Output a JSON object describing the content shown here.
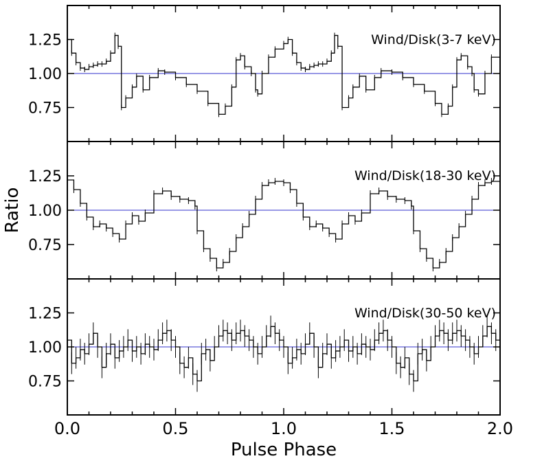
{
  "figure": {
    "ylabel": "Ratio",
    "xlabel": "Pulse Phase"
  },
  "chart_data": [
    {
      "type": "line",
      "panel_label": "Wind/Disk(3-7 keV)",
      "xlim": [
        0,
        2
      ],
      "ylim": [
        0.5,
        1.5
      ],
      "yticks": [
        "0.75",
        "1.00",
        "1.25"
      ],
      "xticks": [
        "0.0",
        "0.5",
        "1.0",
        "1.5",
        "2.0"
      ],
      "reference_line": 1.0,
      "x": [
        0,
        0.02,
        0.04,
        0.06,
        0.08,
        0.1,
        0.12,
        0.14,
        0.16,
        0.18,
        0.2,
        0.22,
        0.235,
        0.25,
        0.27,
        0.3,
        0.32,
        0.35,
        0.38,
        0.42,
        0.45,
        0.5,
        0.55,
        0.6,
        0.65,
        0.7,
        0.73,
        0.76,
        0.78,
        0.8,
        0.82,
        0.85,
        0.87,
        0.88,
        0.9,
        0.93,
        0.96,
        1.0,
        1.02,
        1.04,
        1.06,
        1.08,
        1.1,
        1.12,
        1.14,
        1.16,
        1.18,
        1.2,
        1.22,
        1.235,
        1.25,
        1.27,
        1.3,
        1.32,
        1.35,
        1.38,
        1.42,
        1.45,
        1.5,
        1.55,
        1.6,
        1.65,
        1.7,
        1.73,
        1.76,
        1.78,
        1.8,
        1.82,
        1.85,
        1.87,
        1.88,
        1.9,
        1.93,
        1.96,
        2.0
      ],
      "y": [
        1.25,
        1.15,
        1.08,
        1.04,
        1.03,
        1.05,
        1.06,
        1.07,
        1.07,
        1.09,
        1.15,
        1.28,
        1.2,
        0.75,
        0.82,
        0.9,
        0.98,
        0.88,
        0.97,
        1.02,
        1.01,
        0.97,
        0.92,
        0.87,
        0.78,
        0.7,
        0.76,
        0.9,
        1.1,
        1.13,
        1.05,
        1.0,
        0.88,
        0.85,
        1.0,
        1.12,
        1.18,
        1.22,
        1.25,
        1.15,
        1.08,
        1.04,
        1.03,
        1.05,
        1.06,
        1.07,
        1.07,
        1.09,
        1.15,
        1.28,
        1.2,
        0.75,
        0.82,
        0.9,
        0.98,
        0.88,
        0.97,
        1.02,
        1.01,
        0.97,
        0.92,
        0.87,
        0.78,
        0.7,
        0.76,
        0.9,
        1.1,
        1.13,
        1.05,
        1.0,
        0.88,
        0.85,
        1.0,
        1.12,
        1.2
      ],
      "error": 0.02
    },
    {
      "type": "line",
      "panel_label": "Wind/Disk(18-30 keV)",
      "xlim": [
        0,
        2
      ],
      "ylim": [
        0.5,
        1.5
      ],
      "yticks": [
        "0.75",
        "1.00",
        "1.25"
      ],
      "xticks": [
        "0.0",
        "0.5",
        "1.0",
        "1.5",
        "2.0"
      ],
      "reference_line": 1.0,
      "x": [
        0,
        0.03,
        0.06,
        0.09,
        0.12,
        0.15,
        0.18,
        0.21,
        0.24,
        0.27,
        0.3,
        0.33,
        0.36,
        0.4,
        0.44,
        0.48,
        0.52,
        0.56,
        0.59,
        0.6,
        0.63,
        0.66,
        0.69,
        0.72,
        0.75,
        0.78,
        0.81,
        0.84,
        0.87,
        0.9,
        0.93,
        0.96,
        1.0,
        1.03,
        1.06,
        1.09,
        1.12,
        1.15,
        1.18,
        1.21,
        1.24,
        1.27,
        1.3,
        1.33,
        1.36,
        1.4,
        1.44,
        1.48,
        1.52,
        1.56,
        1.59,
        1.6,
        1.63,
        1.66,
        1.69,
        1.72,
        1.75,
        1.78,
        1.81,
        1.84,
        1.87,
        1.9,
        1.93,
        1.96,
        2.0
      ],
      "y": [
        1.22,
        1.15,
        1.05,
        0.95,
        0.88,
        0.9,
        0.87,
        0.83,
        0.79,
        0.9,
        0.96,
        0.92,
        0.98,
        1.12,
        1.14,
        1.1,
        1.08,
        1.07,
        1.03,
        0.85,
        0.72,
        0.65,
        0.58,
        0.62,
        0.7,
        0.8,
        0.88,
        0.97,
        1.08,
        1.18,
        1.2,
        1.21,
        1.2,
        1.15,
        1.05,
        0.95,
        0.88,
        0.9,
        0.87,
        0.83,
        0.79,
        0.9,
        0.96,
        0.92,
        0.98,
        1.12,
        1.14,
        1.1,
        1.08,
        1.07,
        1.03,
        0.85,
        0.72,
        0.65,
        0.58,
        0.62,
        0.7,
        0.8,
        0.88,
        0.97,
        1.08,
        1.18,
        1.2,
        1.21,
        1.19
      ],
      "error": 0.025
    },
    {
      "type": "line",
      "panel_label": "Wind/Disk(30-50 keV)",
      "xlim": [
        0,
        2
      ],
      "ylim": [
        0.5,
        1.5
      ],
      "yticks": [
        "0.75",
        "1.00",
        "1.25"
      ],
      "xticks": [
        "0.0",
        "0.5",
        "1.0",
        "1.5",
        "2.0"
      ],
      "reference_line": 1.0,
      "x": [
        0,
        0.02,
        0.04,
        0.06,
        0.08,
        0.1,
        0.12,
        0.14,
        0.16,
        0.18,
        0.2,
        0.22,
        0.24,
        0.26,
        0.28,
        0.3,
        0.32,
        0.34,
        0.36,
        0.38,
        0.4,
        0.42,
        0.44,
        0.46,
        0.48,
        0.5,
        0.52,
        0.54,
        0.56,
        0.58,
        0.6,
        0.62,
        0.64,
        0.66,
        0.68,
        0.7,
        0.72,
        0.74,
        0.76,
        0.78,
        0.8,
        0.82,
        0.84,
        0.86,
        0.88,
        0.9,
        0.92,
        0.94,
        0.96,
        0.98,
        1.0,
        1.02,
        1.04,
        1.06,
        1.08,
        1.1,
        1.12,
        1.14,
        1.16,
        1.18,
        1.2,
        1.22,
        1.24,
        1.26,
        1.28,
        1.3,
        1.32,
        1.34,
        1.36,
        1.38,
        1.4,
        1.42,
        1.44,
        1.46,
        1.48,
        1.5,
        1.52,
        1.54,
        1.56,
        1.58,
        1.6,
        1.62,
        1.64,
        1.66,
        1.68,
        1.7,
        1.72,
        1.74,
        1.76,
        1.78,
        1.8,
        1.82,
        1.84,
        1.86,
        1.88,
        1.9,
        1.92,
        1.94,
        1.96,
        1.98,
        2.0
      ],
      "y": [
        1.05,
        0.88,
        0.92,
        0.98,
        0.95,
        1.02,
        1.1,
        1.0,
        0.85,
        0.95,
        1.02,
        0.92,
        0.97,
        1.0,
        1.05,
        0.97,
        1.0,
        0.95,
        1.02,
        1.0,
        0.98,
        1.05,
        1.1,
        1.12,
        1.05,
        1.0,
        0.88,
        0.85,
        0.92,
        0.8,
        0.75,
        0.95,
        0.98,
        0.9,
        1.0,
        1.08,
        1.12,
        1.1,
        1.05,
        1.1,
        1.12,
        1.08,
        1.05,
        1.0,
        0.95,
        1.0,
        1.08,
        1.15,
        1.1,
        1.05,
        1.0,
        0.88,
        0.92,
        0.98,
        0.95,
        1.02,
        1.1,
        1.0,
        0.85,
        0.95,
        1.02,
        0.92,
        0.97,
        1.0,
        1.05,
        0.97,
        1.0,
        0.95,
        1.02,
        1.0,
        0.98,
        1.05,
        1.1,
        1.12,
        1.05,
        1.0,
        0.88,
        0.85,
        0.92,
        0.8,
        0.75,
        0.95,
        0.98,
        0.9,
        1.0,
        1.08,
        1.12,
        1.1,
        1.05,
        1.1,
        1.12,
        1.08,
        1.05,
        1.0,
        0.95,
        1.0,
        1.08,
        1.15,
        1.1,
        1.05,
        1.02
      ],
      "error": 0.08
    }
  ]
}
